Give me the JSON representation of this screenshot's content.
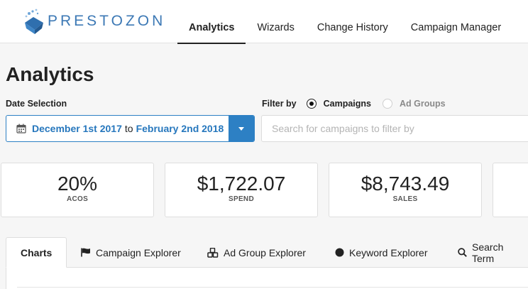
{
  "brand": {
    "name": "PRESTOZON"
  },
  "nav": {
    "items": [
      {
        "label": "Analytics",
        "active": true
      },
      {
        "label": "Wizards"
      },
      {
        "label": "Change History"
      },
      {
        "label": "Campaign Manager"
      }
    ]
  },
  "page": {
    "title": "Analytics"
  },
  "date_selection": {
    "label": "Date Selection",
    "start": "December 1st 2017",
    "connector": "to",
    "end": "February 2nd 2018"
  },
  "filter": {
    "label": "Filter by",
    "options": [
      {
        "label": "Campaigns",
        "selected": true
      },
      {
        "label": "Ad Groups",
        "selected": false
      }
    ],
    "search_placeholder": "Search for campaigns to filter by"
  },
  "stats": [
    {
      "value": "20%",
      "label": "ACOS"
    },
    {
      "value": "$1,722.07",
      "label": "SPEND"
    },
    {
      "value": "$8,743.49",
      "label": "SALES"
    }
  ],
  "tabs": [
    {
      "label": "Charts",
      "active": true,
      "icon": "none"
    },
    {
      "label": "Campaign Explorer",
      "icon": "flag-icon"
    },
    {
      "label": "Ad Group Explorer",
      "icon": "cubes-icon"
    },
    {
      "label": "Keyword Explorer",
      "icon": "circle-icon"
    },
    {
      "label": "Search Term",
      "icon": "search-icon"
    }
  ],
  "colors": {
    "accent": "#2d80c4",
    "brand": "#3d79b5",
    "background": "#f6f6f6"
  }
}
